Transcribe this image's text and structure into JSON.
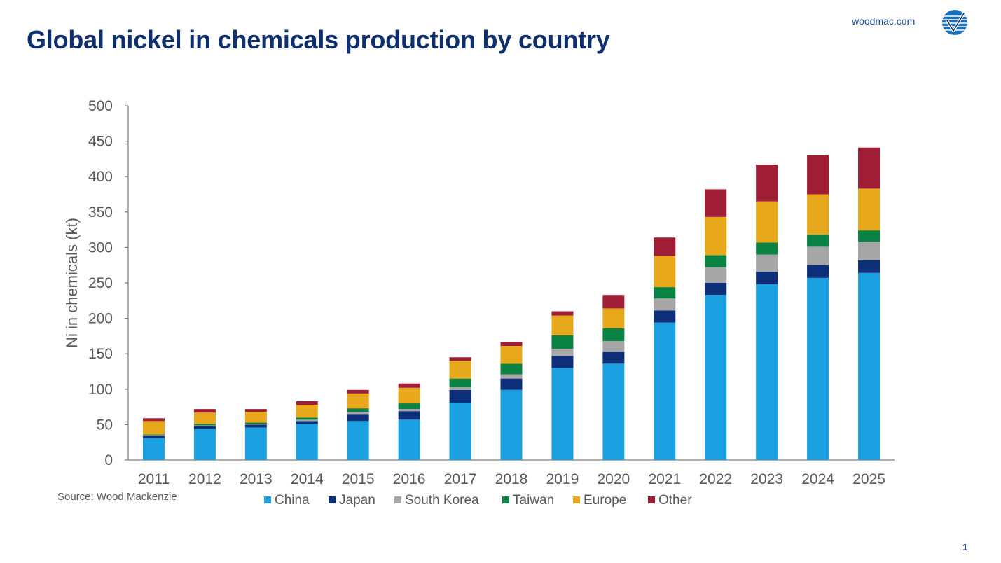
{
  "header": {
    "title": "Global nickel in chemicals production by country",
    "brand_url": "woodmac.com"
  },
  "footer": {
    "source": "Source: Wood Mackenzie",
    "page_number": "1"
  },
  "colors": {
    "title": "#0d2f6e",
    "brand": "#1b4d9b",
    "axis": "#595959"
  },
  "icons": {
    "logo": "woodmac-logo-icon"
  },
  "chart_data": {
    "type": "bar",
    "stacked": true,
    "title": "",
    "xlabel": "",
    "ylabel": "Ni in chemicals (kt)",
    "ylim": [
      0,
      500
    ],
    "yticks": [
      0,
      50,
      100,
      150,
      200,
      250,
      300,
      350,
      400,
      450,
      500
    ],
    "grid": false,
    "legend_position": "bottom",
    "categories": [
      "2011",
      "2012",
      "2013",
      "2014",
      "2015",
      "2016",
      "2017",
      "2018",
      "2019",
      "2020",
      "2021",
      "2022",
      "2023",
      "2024",
      "2025"
    ],
    "series": [
      {
        "name": "China",
        "color": "#1ba1e2",
        "values": [
          31,
          44,
          46,
          51,
          55,
          57,
          81,
          99,
          130,
          136,
          194,
          233,
          248,
          257,
          264
        ]
      },
      {
        "name": "Japan",
        "color": "#0d2f7a",
        "values": [
          3,
          4,
          4,
          4,
          10,
          12,
          18,
          16,
          17,
          17,
          17,
          17,
          18,
          18,
          18
        ]
      },
      {
        "name": "South Korea",
        "color": "#a6a6a6",
        "values": [
          1,
          1,
          1,
          2,
          3,
          3,
          4,
          6,
          10,
          15,
          17,
          22,
          24,
          26,
          26
        ]
      },
      {
        "name": "Taiwan",
        "color": "#0a8243",
        "values": [
          1,
          2,
          2,
          3,
          5,
          8,
          12,
          15,
          19,
          18,
          16,
          17,
          17,
          17,
          16
        ]
      },
      {
        "name": "Europe",
        "color": "#e8a81b",
        "values": [
          19,
          16,
          15,
          18,
          21,
          22,
          25,
          25,
          28,
          28,
          44,
          54,
          58,
          57,
          59
        ]
      },
      {
        "name": "Other",
        "color": "#a01d36",
        "values": [
          4,
          5,
          4,
          5,
          5,
          6,
          5,
          6,
          6,
          19,
          26,
          39,
          52,
          55,
          58
        ]
      }
    ]
  }
}
